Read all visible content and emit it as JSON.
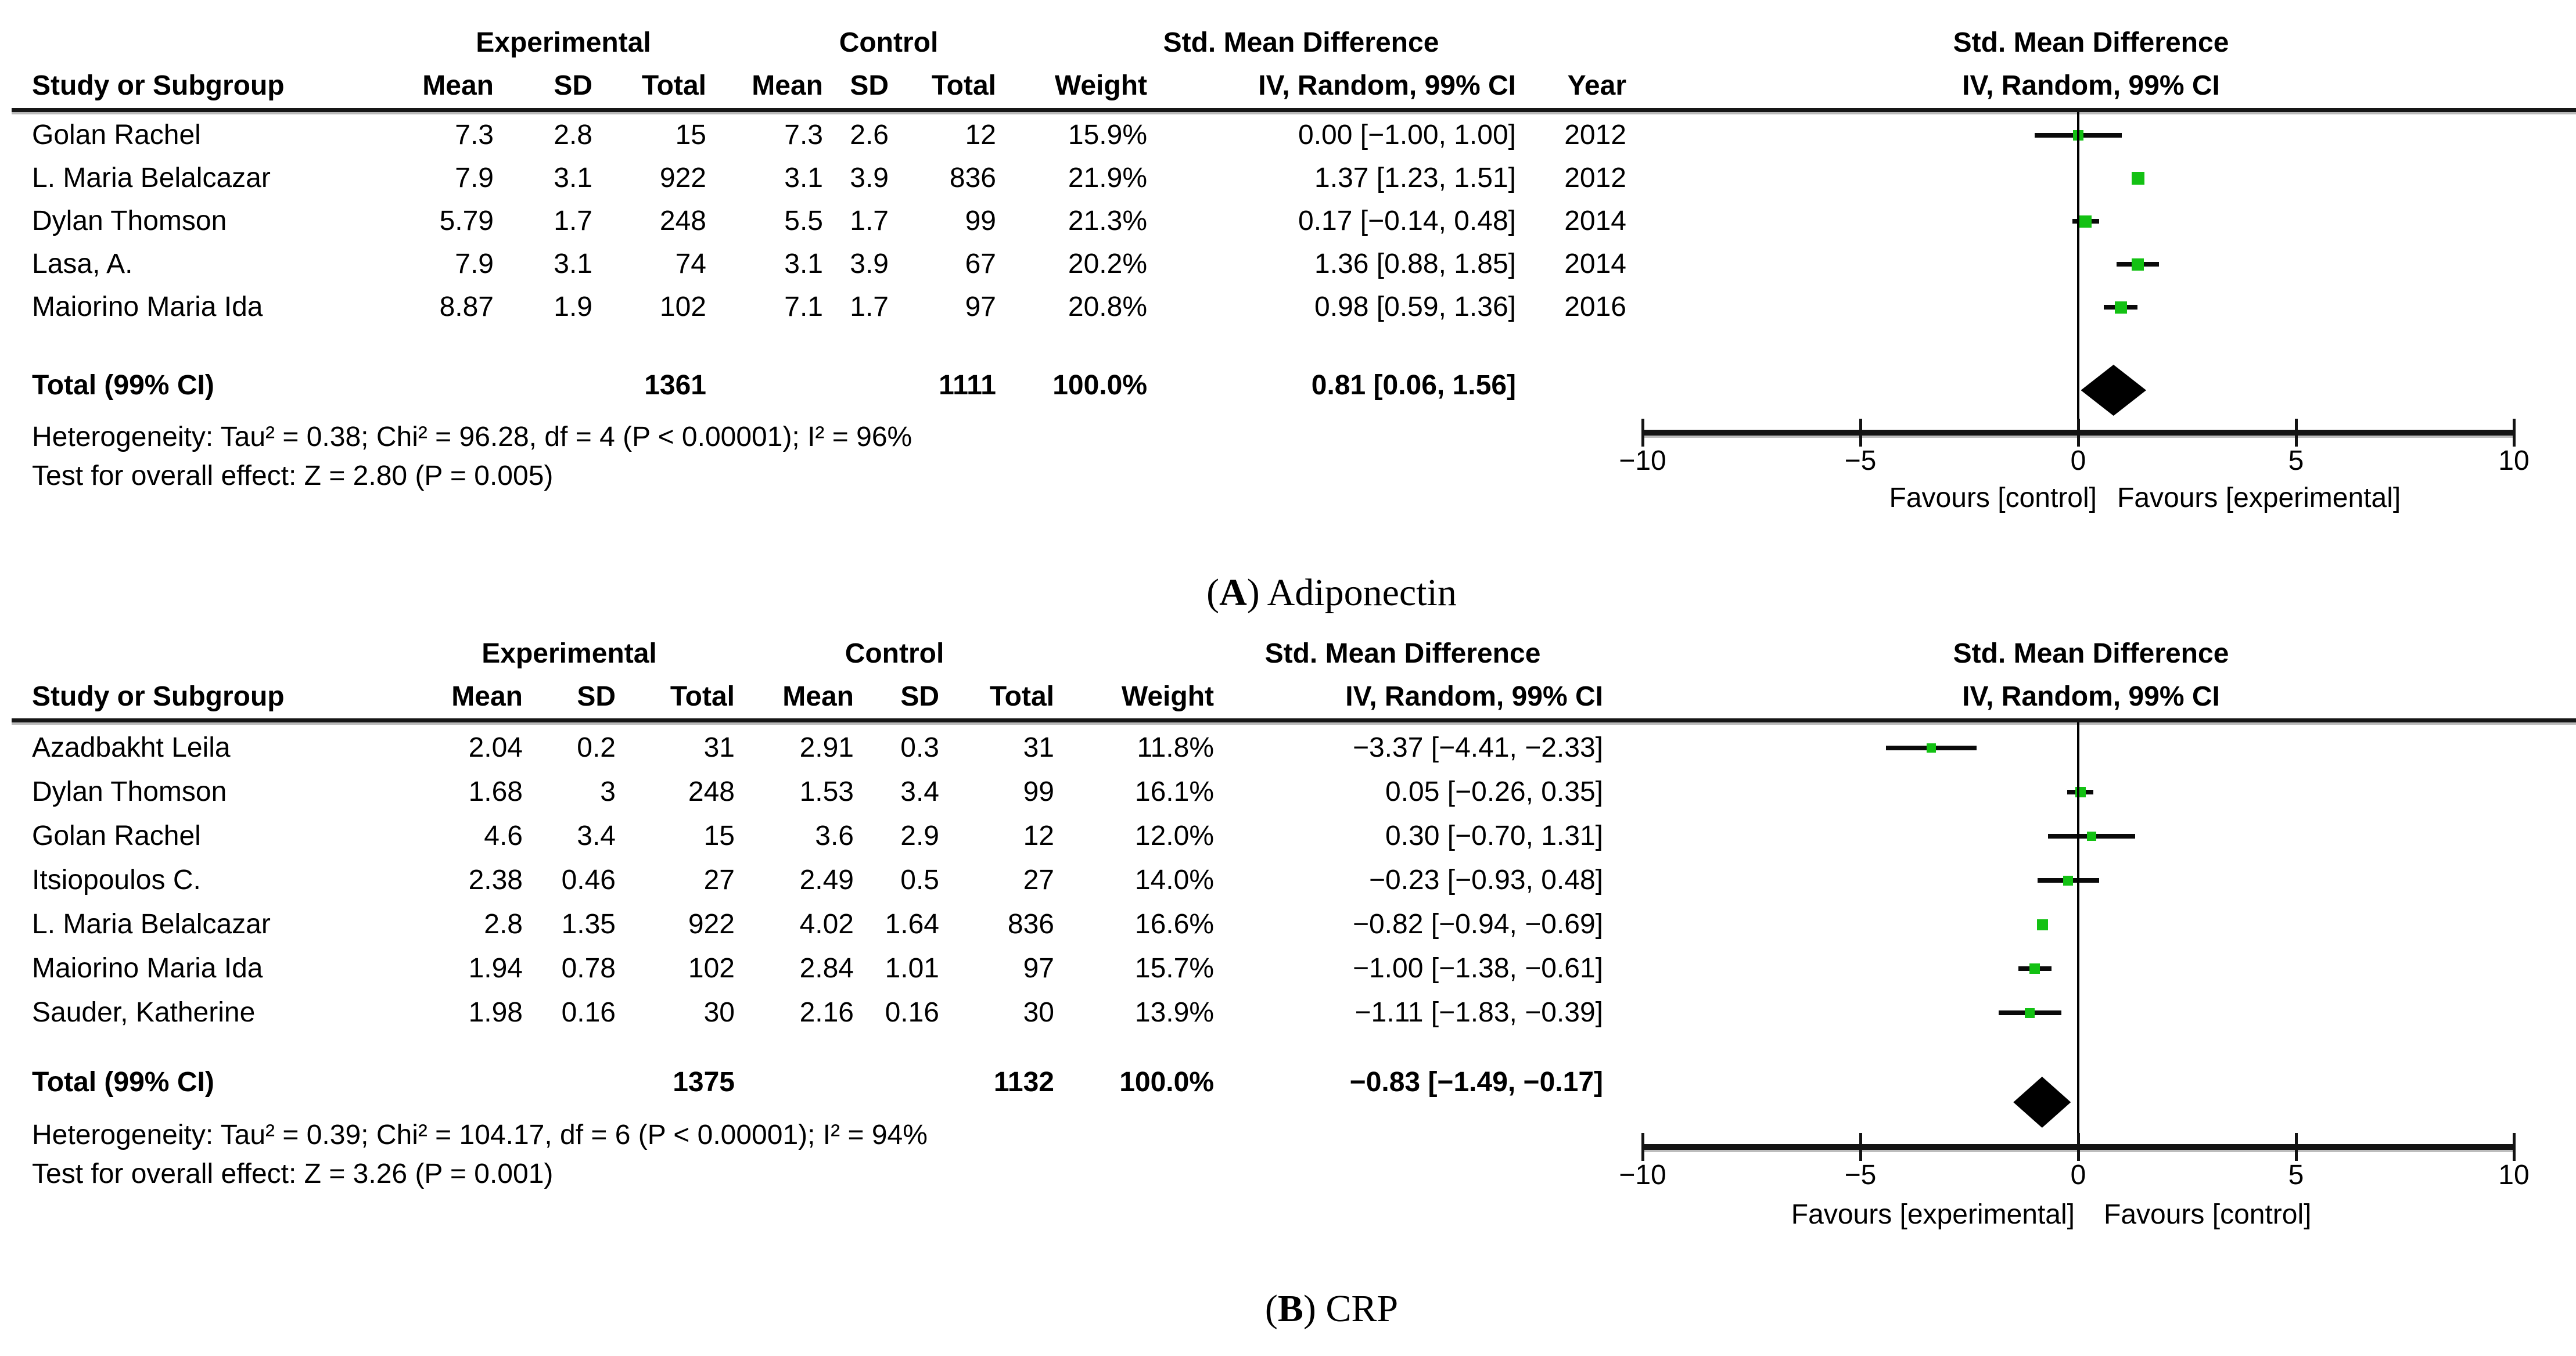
{
  "figure": {
    "type_label": "Forest plot (meta-analysis, RevMan style)",
    "marker_color": "#13c113",
    "line_color": "#0a0a0a",
    "diamond_color": "#000000"
  },
  "chart_data": [
    {
      "type": "forest",
      "caption": {
        "open": "(",
        "letter": "A",
        "close": ") ",
        "title": "Adiponectin"
      },
      "group_headers": {
        "experimental": "Experimental",
        "control": "Control",
        "smd_table": "Std. Mean Difference",
        "smd_plot": "Std. Mean Difference"
      },
      "column_headers": {
        "study": "Study or Subgroup",
        "mean1": "Mean",
        "sd1": "SD",
        "total1": "Total",
        "mean2": "Mean",
        "sd2": "SD",
        "total2": "Total",
        "weight": "Weight",
        "ci": "IV, Random, 99% CI",
        "year": "Year",
        "ci_plot": "IV, Random, 99% CI"
      },
      "studies": [
        {
          "name": "Golan Rachel",
          "exp_mean": "7.3",
          "exp_sd": "2.8",
          "exp_total": "15",
          "ctl_mean": "7.3",
          "ctl_sd": "2.6",
          "ctl_total": "12",
          "weight": "15.9%",
          "weight_value": 15.9,
          "ci_text": "0.00 [−1.00, 1.00]",
          "year": "2012",
          "smd": 0.0,
          "ci_low": -1.0,
          "ci_high": 1.0
        },
        {
          "name": "L. Maria Belalcazar",
          "exp_mean": "7.9",
          "exp_sd": "3.1",
          "exp_total": "922",
          "ctl_mean": "3.1",
          "ctl_sd": "3.9",
          "ctl_total": "836",
          "weight": "21.9%",
          "weight_value": 21.9,
          "ci_text": "1.37 [1.23, 1.51]",
          "year": "2012",
          "smd": 1.37,
          "ci_low": 1.23,
          "ci_high": 1.51
        },
        {
          "name": "Dylan Thomson",
          "exp_mean": "5.79",
          "exp_sd": "1.7",
          "exp_total": "248",
          "ctl_mean": "5.5",
          "ctl_sd": "1.7",
          "ctl_total": "99",
          "weight": "21.3%",
          "weight_value": 21.3,
          "ci_text": "0.17 [−0.14, 0.48]",
          "year": "2014",
          "smd": 0.17,
          "ci_low": -0.14,
          "ci_high": 0.48
        },
        {
          "name": "Lasa, A.",
          "exp_mean": "7.9",
          "exp_sd": "3.1",
          "exp_total": "74",
          "ctl_mean": "3.1",
          "ctl_sd": "3.9",
          "ctl_total": "67",
          "weight": "20.2%",
          "weight_value": 20.2,
          "ci_text": "1.36 [0.88, 1.85]",
          "year": "2014",
          "smd": 1.36,
          "ci_low": 0.88,
          "ci_high": 1.85
        },
        {
          "name": "Maiorino Maria Ida",
          "exp_mean": "8.87",
          "exp_sd": "1.9",
          "exp_total": "102",
          "ctl_mean": "7.1",
          "ctl_sd": "1.7",
          "ctl_total": "97",
          "weight": "20.8%",
          "weight_value": 20.8,
          "ci_text": "0.98 [0.59, 1.36]",
          "year": "2016",
          "smd": 0.98,
          "ci_low": 0.59,
          "ci_high": 1.36
        }
      ],
      "total": {
        "label": "Total (99% CI)",
        "exp_total": "1361",
        "ctl_total": "1111",
        "weight": "100.0%",
        "ci_text": "0.81 [0.06, 1.56]",
        "smd": 0.81,
        "ci_low": 0.06,
        "ci_high": 1.56
      },
      "heterogeneity": "Heterogeneity: Tau² = 0.38; Chi² = 96.28, df = 4 (P < 0.00001); I² = 96%",
      "overall_test": "Test for overall effect: Z = 2.80 (P = 0.005)",
      "axis": {
        "min": -10,
        "max": 10,
        "ticks": [
          -10,
          -5,
          0,
          5,
          10
        ],
        "favours_left": "Favours [control]",
        "favours_right": "Favours [experimental]"
      }
    },
    {
      "type": "forest",
      "caption": {
        "open": "(",
        "letter": "B",
        "close": ") ",
        "title": "CRP"
      },
      "group_headers": {
        "experimental": "Experimental",
        "control": "Control",
        "smd_table": "Std. Mean Difference",
        "smd_plot": "Std. Mean Difference"
      },
      "column_headers": {
        "study": "Study or Subgroup",
        "mean1": "Mean",
        "sd1": "SD",
        "total1": "Total",
        "mean2": "Mean",
        "sd2": "SD",
        "total2": "Total",
        "weight": "Weight",
        "ci": "IV, Random, 99% CI",
        "ci_plot": "IV, Random, 99% CI"
      },
      "studies": [
        {
          "name": "Azadbakht Leila",
          "exp_mean": "2.04",
          "exp_sd": "0.2",
          "exp_total": "31",
          "ctl_mean": "2.91",
          "ctl_sd": "0.3",
          "ctl_total": "31",
          "weight": "11.8%",
          "weight_value": 11.8,
          "ci_text": "−3.37 [−4.41, −2.33]",
          "smd": -3.37,
          "ci_low": -4.41,
          "ci_high": -2.33
        },
        {
          "name": "Dylan Thomson",
          "exp_mean": "1.68",
          "exp_sd": "3",
          "exp_total": "248",
          "ctl_mean": "1.53",
          "ctl_sd": "3.4",
          "ctl_total": "99",
          "weight": "16.1%",
          "weight_value": 16.1,
          "ci_text": "0.05 [−0.26, 0.35]",
          "smd": 0.05,
          "ci_low": -0.26,
          "ci_high": 0.35
        },
        {
          "name": "Golan Rachel",
          "exp_mean": "4.6",
          "exp_sd": "3.4",
          "exp_total": "15",
          "ctl_mean": "3.6",
          "ctl_sd": "2.9",
          "ctl_total": "12",
          "weight": "12.0%",
          "weight_value": 12.0,
          "ci_text": "0.30 [−0.70, 1.31]",
          "smd": 0.3,
          "ci_low": -0.7,
          "ci_high": 1.31
        },
        {
          "name": "Itsiopoulos C.",
          "exp_mean": "2.38",
          "exp_sd": "0.46",
          "exp_total": "27",
          "ctl_mean": "2.49",
          "ctl_sd": "0.5",
          "ctl_total": "27",
          "weight": "14.0%",
          "weight_value": 14.0,
          "ci_text": "−0.23 [−0.93, 0.48]",
          "smd": -0.23,
          "ci_low": -0.93,
          "ci_high": 0.48
        },
        {
          "name": "L. Maria Belalcazar",
          "exp_mean": "2.8",
          "exp_sd": "1.35",
          "exp_total": "922",
          "ctl_mean": "4.02",
          "ctl_sd": "1.64",
          "ctl_total": "836",
          "weight": "16.6%",
          "weight_value": 16.6,
          "ci_text": "−0.82 [−0.94, −0.69]",
          "smd": -0.82,
          "ci_low": -0.94,
          "ci_high": -0.69
        },
        {
          "name": "Maiorino Maria Ida",
          "exp_mean": "1.94",
          "exp_sd": "0.78",
          "exp_total": "102",
          "ctl_mean": "2.84",
          "ctl_sd": "1.01",
          "ctl_total": "97",
          "weight": "15.7%",
          "weight_value": 15.7,
          "ci_text": "−1.00 [−1.38, −0.61]",
          "smd": -1.0,
          "ci_low": -1.38,
          "ci_high": -0.61
        },
        {
          "name": "Sauder, Katherine",
          "exp_mean": "1.98",
          "exp_sd": "0.16",
          "exp_total": "30",
          "ctl_mean": "2.16",
          "ctl_sd": "0.16",
          "ctl_total": "30",
          "weight": "13.9%",
          "weight_value": 13.9,
          "ci_text": "−1.11 [−1.83, −0.39]",
          "smd": -1.11,
          "ci_low": -1.83,
          "ci_high": -0.39
        }
      ],
      "total": {
        "label": "Total (99% CI)",
        "exp_total": "1375",
        "ctl_total": "1132",
        "weight": "100.0%",
        "ci_text": "−0.83 [−1.49, −0.17]",
        "smd": -0.83,
        "ci_low": -1.49,
        "ci_high": -0.17
      },
      "heterogeneity": "Heterogeneity: Tau² = 0.39; Chi² = 104.17, df = 6 (P < 0.00001); I² = 94%",
      "overall_test": "Test for overall effect: Z = 3.26 (P = 0.001)",
      "axis": {
        "min": -10,
        "max": 10,
        "ticks": [
          -10,
          -5,
          0,
          5,
          10
        ],
        "favours_left": "Favours [experimental]",
        "favours_right": "Favours [control]"
      }
    }
  ]
}
